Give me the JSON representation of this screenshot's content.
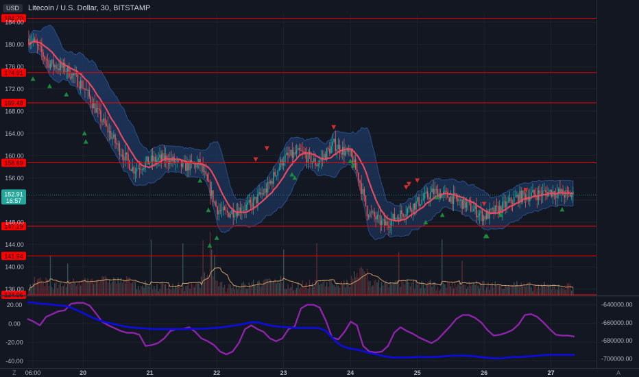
{
  "header": {
    "currency_badge": "USD",
    "symbol_title": "Litecoin / U.S. Dollar, 30, BITSTAMP"
  },
  "chart_data": [
    {
      "type": "candlestick",
      "title": "Litecoin / U.S. Dollar, 30, BITSTAMP",
      "ylim": [
        134.96,
        185.5
      ],
      "y_ticks": [
        "184.00",
        "180.00",
        "176.00",
        "172.00",
        "168.00",
        "164.00",
        "160.00",
        "156.00",
        "152.00",
        "148.00",
        "144.00",
        "140.00",
        "136.00"
      ],
      "x_ticks": [
        "06:00",
        "20",
        "21",
        "22",
        "23",
        "24",
        "25",
        "26",
        "27"
      ],
      "horizontal_levels": [
        "184.70",
        "174.91",
        "169.48",
        "158.69",
        "147.29",
        "141.94",
        "134.96"
      ],
      "current_price": {
        "value": "152.91",
        "countdown": "16:57"
      },
      "close_path": [
        [
          "06:00",
          181.0
        ],
        [
          "06:30",
          180.2
        ],
        [
          "12:00",
          176.5
        ],
        [
          "18:00",
          175.5
        ],
        [
          "20",
          172.5
        ],
        [
          "20 06:00",
          167.0
        ],
        [
          "20 12:00",
          162.0
        ],
        [
          "20 18:00",
          157.5
        ],
        [
          "21",
          159.0
        ],
        [
          "21 06:00",
          159.5
        ],
        [
          "21 12:00",
          158.0
        ],
        [
          "21 18:00",
          158.5
        ],
        [
          "22",
          150.5
        ],
        [
          "22 03:00",
          149.5
        ],
        [
          "22 12:00",
          151.0
        ],
        [
          "22 18:00",
          154.0
        ],
        [
          "23",
          159.5
        ],
        [
          "23 06:00",
          160.5
        ],
        [
          "23 12:00",
          158.5
        ],
        [
          "23 18:00",
          162.0
        ],
        [
          "24",
          160.0
        ],
        [
          "24 03:00",
          156.0
        ],
        [
          "24 06:00",
          150.0
        ],
        [
          "24 12:00",
          147.5
        ],
        [
          "25",
          151.5
        ],
        [
          "25 06:00",
          153.5
        ],
        [
          "25 12:00",
          152.5
        ],
        [
          "25 18:00",
          151.0
        ],
        [
          "26",
          149.0
        ],
        [
          "26 06:00",
          150.5
        ],
        [
          "26 12:00",
          152.5
        ],
        [
          "26 18:00",
          153.0
        ],
        [
          "27",
          153.5
        ],
        [
          "27 06:00",
          152.9
        ]
      ],
      "buy_signals": [
        [
          "06:00",
          173.8
        ],
        [
          "12:00",
          172.5
        ],
        [
          "18:00",
          171.0
        ],
        [
          "20 00:30",
          164.0
        ],
        [
          "20 01:00",
          162.5
        ],
        [
          "21 18:00",
          155.5
        ],
        [
          "21 21:00",
          150.2
        ],
        [
          "22 00:00",
          145.2
        ],
        [
          "21 21:30",
          143.8
        ],
        [
          "23 03:00",
          156.6
        ],
        [
          "23 04:00",
          156.0
        ],
        [
          "24 00:00",
          159.0
        ],
        [
          "24 01:00",
          158.2
        ],
        [
          "25 07:00",
          152.5
        ],
        [
          "25 03:00",
          148.0
        ],
        [
          "25 09:00",
          149.3
        ],
        [
          "26 00:30",
          145.5
        ],
        [
          "26 01:00",
          145.5
        ],
        [
          "26 06:00",
          149.3
        ],
        [
          "27 04:00",
          150.3
        ]
      ],
      "sell_signals": [
        [
          "22 18:00",
          161.3
        ],
        [
          "22 14:00",
          159.3
        ],
        [
          "23 18:00",
          165.1
        ],
        [
          "25 00:00",
          155.5
        ],
        [
          "24 21:00",
          154.9
        ],
        [
          "24 20:00",
          154.3
        ],
        [
          "26 00:00",
          151.3
        ],
        [
          "26 15:00",
          153.8
        ]
      ],
      "colors": {
        "up": "#26a69a",
        "down": "#ef5350",
        "basis": "#e84a5f",
        "band_fill": "#1e3a66",
        "level": "#ff0000",
        "signal_up": "#1b8a3a",
        "signal_down": "#d32f2f",
        "volume_ma": "#d9a066"
      }
    },
    {
      "type": "line",
      "y_ticks_left": [
        "20.00",
        "0.00",
        "-20.00",
        "-40.00"
      ],
      "y_ticks_right": [
        "-640000.00",
        "-660000.00",
        "-680000.00",
        "-700000.00"
      ],
      "ylim_left": [
        -44,
        27
      ],
      "ylim_right": [
        -707000,
        -633000
      ],
      "series": [
        {
          "color": "#8e24aa",
          "values": [
            5,
            2,
            -2,
            7,
            10,
            13,
            14,
            21,
            22,
            22,
            19,
            11,
            2,
            -2,
            -5,
            -8,
            -10,
            -10,
            -12,
            -24,
            -23,
            -21,
            -16,
            -8,
            -6,
            -6,
            -4,
            -9,
            -16,
            -19,
            -23,
            -30,
            -33,
            -30,
            -21,
            -6,
            -2,
            -6,
            -9,
            -16,
            -19,
            -16,
            -6,
            -3,
            16,
            20,
            20,
            17,
            3,
            -15,
            -17,
            -9,
            2,
            -2,
            -24,
            -30,
            -31,
            -30,
            -24,
            -10,
            -4,
            -8,
            -11,
            -15,
            -18,
            -21,
            -17,
            -10,
            -3,
            5,
            9,
            9,
            6,
            1,
            -7,
            -13,
            -12,
            -10,
            -7,
            -1,
            9,
            10,
            7,
            1,
            -6,
            -12,
            -13,
            -13,
            -14
          ]
        },
        {
          "color": "#0d0ddb",
          "values": [
            -637500,
            -638000,
            -639000,
            -639500,
            -640000,
            -641000,
            -641500,
            -643000,
            -646000,
            -649000,
            -652500,
            -655500,
            -658000,
            -660000,
            -661500,
            -663000,
            -664500,
            -665500,
            -666000,
            -666500,
            -667000,
            -667500,
            -667500,
            -667500,
            -667500,
            -667500,
            -667500,
            -667000,
            -667000,
            -667000,
            -666500,
            -666000,
            -665500,
            -664500,
            -663500,
            -662500,
            -661000,
            -659500,
            -660000,
            -662000,
            -663500,
            -664500,
            -665000,
            -665500,
            -666000,
            -666000,
            -666000,
            -666000,
            -666500,
            -669000,
            -676000,
            -683000,
            -687000,
            -689000,
            -690000,
            -691500,
            -693500,
            -695000,
            -696500,
            -698000,
            -699000,
            -699000,
            -699000,
            -699000,
            -698500,
            -698500,
            -698500,
            -698500,
            -698000,
            -697500,
            -697000,
            -697000,
            -697000,
            -697500,
            -698000,
            -699000,
            -699500,
            -700000,
            -700000,
            -699000,
            -698500,
            -698500,
            -698000,
            -697500,
            -697000,
            -696500,
            -696000,
            -696000,
            -696000,
            -696000,
            -696000
          ]
        }
      ]
    }
  ],
  "bottom_bar": {
    "left_icon": "Z",
    "right_icon": "A"
  }
}
